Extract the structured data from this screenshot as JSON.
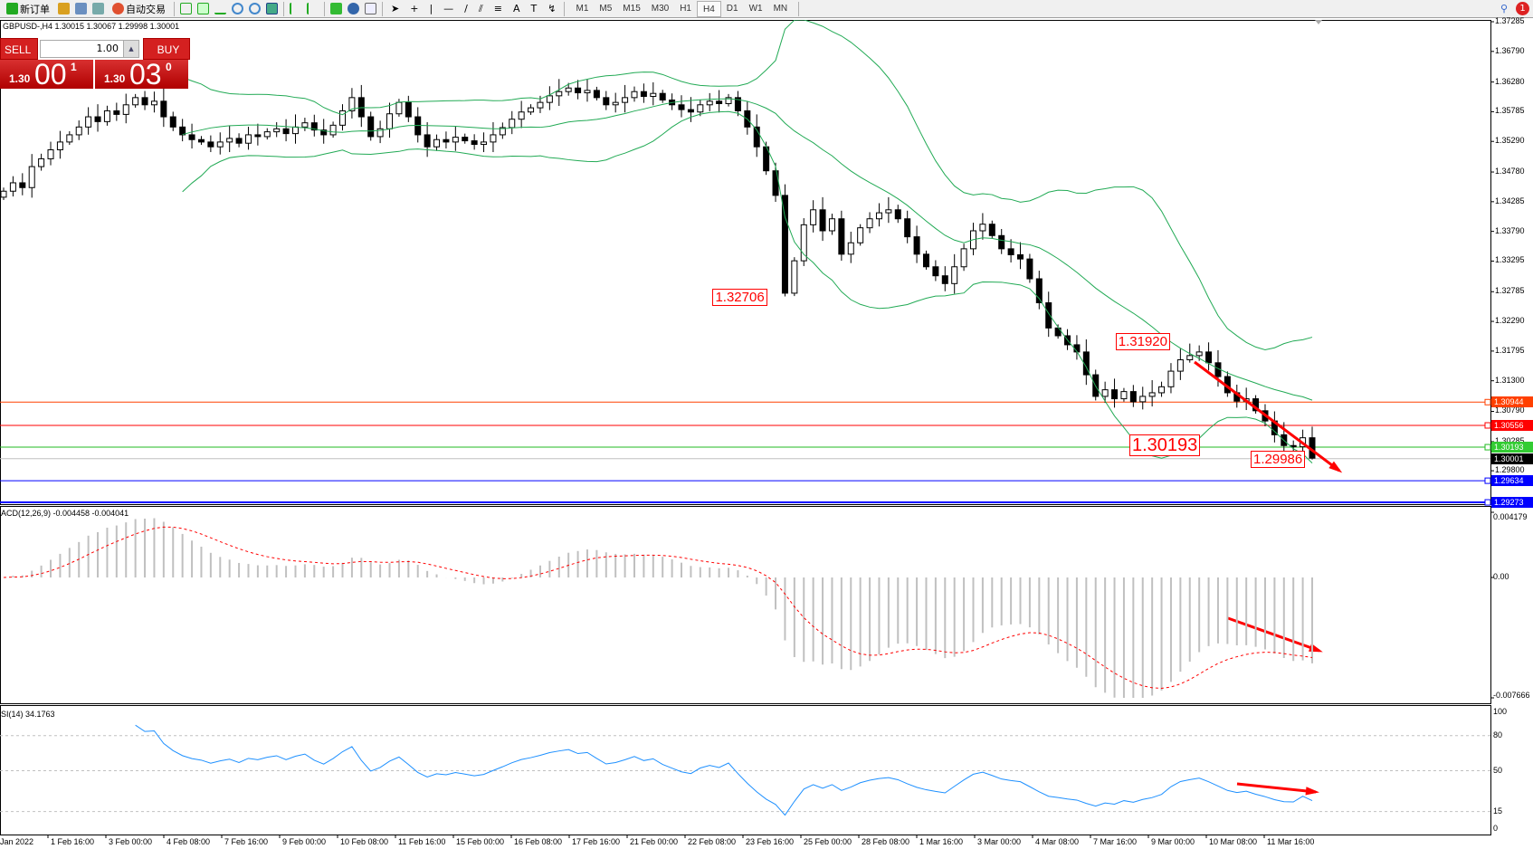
{
  "toolbar": {
    "new_order": "新订单",
    "auto_trading": "自动交易",
    "timeframes": [
      "M1",
      "M5",
      "M15",
      "M30",
      "H1",
      "H4",
      "D1",
      "W1",
      "MN"
    ],
    "active_timeframe": "H4",
    "notification_count": "1"
  },
  "chart": {
    "header": "GBPUSD-,H4  1.30015 1.30067 1.29998 1.30001",
    "symbol": "GBPUSD-",
    "timeframe": "H4"
  },
  "one_click": {
    "sell": "SELL",
    "buy": "BUY",
    "lot": "1.00",
    "bid_big": "1.30",
    "bid_pips": "00",
    "bid_frac": "1",
    "ask_big": "1.30",
    "ask_pips": "03",
    "ask_frac": "0"
  },
  "price_axis": [
    "1.37285",
    "1.36790",
    "1.36280",
    "1.35785",
    "1.35290",
    "1.34780",
    "1.34285",
    "1.33790",
    "1.33295",
    "1.32785",
    "1.32290",
    "1.31795",
    "1.31300",
    "1.30790",
    "1.30285",
    "1.29800"
  ],
  "hlines": [
    {
      "price": "1.30944",
      "color": "#ff4000"
    },
    {
      "price": "1.30556",
      "color": "#ff0000"
    },
    {
      "price": "1.30193",
      "color": "#22bb22"
    },
    {
      "price": "1.30001",
      "color": "#000000",
      "current": true
    },
    {
      "price": "1.29634",
      "color": "#0000ff"
    },
    {
      "price": "1.29273",
      "color": "#0000ff"
    }
  ],
  "annotations": [
    {
      "text": "1.32706",
      "bar": 83
    },
    {
      "text": "1.31920",
      "bar": 126
    },
    {
      "text": "1.30193",
      "bar": 116
    },
    {
      "text": "1.29986",
      "bar": 139
    }
  ],
  "macd": {
    "label": "ACD(12,26,9) -0.004458 -0.004041",
    "axis": [
      "0.004179",
      "0.00",
      "-0.007666"
    ]
  },
  "rsi": {
    "label": "SI(14) 34.1763",
    "axis": [
      "100",
      "80",
      "50",
      "15",
      "0"
    ]
  },
  "time_axis": [
    "Jan 2022",
    "1 Feb 16:00",
    "3 Feb 00:00",
    "4 Feb 08:00",
    "7 Feb 16:00",
    "9 Feb 00:00",
    "10 Feb 08:00",
    "11 Feb 16:00",
    "15 Feb 00:00",
    "16 Feb 08:00",
    "17 Feb 16:00",
    "21 Feb 00:00",
    "22 Feb 08:00",
    "23 Feb 16:00",
    "25 Feb 00:00",
    "28 Feb 08:00",
    "1 Mar 16:00",
    "3 Mar 00:00",
    "4 Mar 08:00",
    "7 Mar 16:00",
    "9 Mar 00:00",
    "10 Mar 08:00",
    "11 Mar 16:00"
  ],
  "colors": {
    "bands": "#22aa55",
    "signal": "#ff0000",
    "histogram": "#c0c0c0",
    "rsi": "#1e90ff",
    "arrow": "#ff0000"
  },
  "chart_data": {
    "type": "candlestick",
    "closes": [
      1.3446,
      1.346,
      1.3452,
      1.3487,
      1.35,
      1.3515,
      1.3528,
      1.354,
      1.3553,
      1.357,
      1.3562,
      1.358,
      1.3574,
      1.359,
      1.3602,
      1.359,
      1.3596,
      1.357,
      1.3553,
      1.354,
      1.3532,
      1.3528,
      1.352,
      1.3528,
      1.3534,
      1.3526,
      1.354,
      1.3537,
      1.3545,
      1.355,
      1.3542,
      1.3553,
      1.356,
      1.3548,
      1.354,
      1.3556,
      1.358,
      1.3602,
      1.357,
      1.3537,
      1.355,
      1.3575,
      1.3594,
      1.357,
      1.354,
      1.352,
      1.3532,
      1.3528,
      1.3536,
      1.353,
      1.3524,
      1.3528,
      1.354,
      1.3552,
      1.3566,
      1.3578,
      1.3585,
      1.3594,
      1.3605,
      1.3612,
      1.3618,
      1.361,
      1.3614,
      1.3602,
      1.359,
      1.3594,
      1.3602,
      1.3612,
      1.3604,
      1.3609,
      1.3598,
      1.359,
      1.3582,
      1.3578,
      1.359,
      1.3596,
      1.3592,
      1.3602,
      1.358,
      1.3553,
      1.352,
      1.348,
      1.3439,
      1.3276,
      1.333,
      1.339,
      1.3415,
      1.338,
      1.34,
      1.3341,
      1.336,
      1.3385,
      1.34,
      1.341,
      1.3415,
      1.34,
      1.337,
      1.3341,
      1.332,
      1.3305,
      1.3292,
      1.332,
      1.335,
      1.338,
      1.3391,
      1.3372,
      1.335,
      1.334,
      1.3333,
      1.33,
      1.326,
      1.3218,
      1.3205,
      1.319,
      1.3178,
      1.314,
      1.3104,
      1.3115,
      1.31,
      1.3112,
      1.3095,
      1.3104,
      1.311,
      1.312,
      1.3146,
      1.3165,
      1.3172,
      1.3178,
      1.316,
      1.3137,
      1.311,
      1.3096,
      1.31,
      1.308,
      1.3063,
      1.304,
      1.3022,
      1.302,
      1.3035,
      1.3001
    ],
    "ylim": [
      1.29273,
      1.37285
    ],
    "indicators": [
      "Bollinger Bands",
      "MACD(12,26,9)",
      "RSI(14)"
    ]
  }
}
